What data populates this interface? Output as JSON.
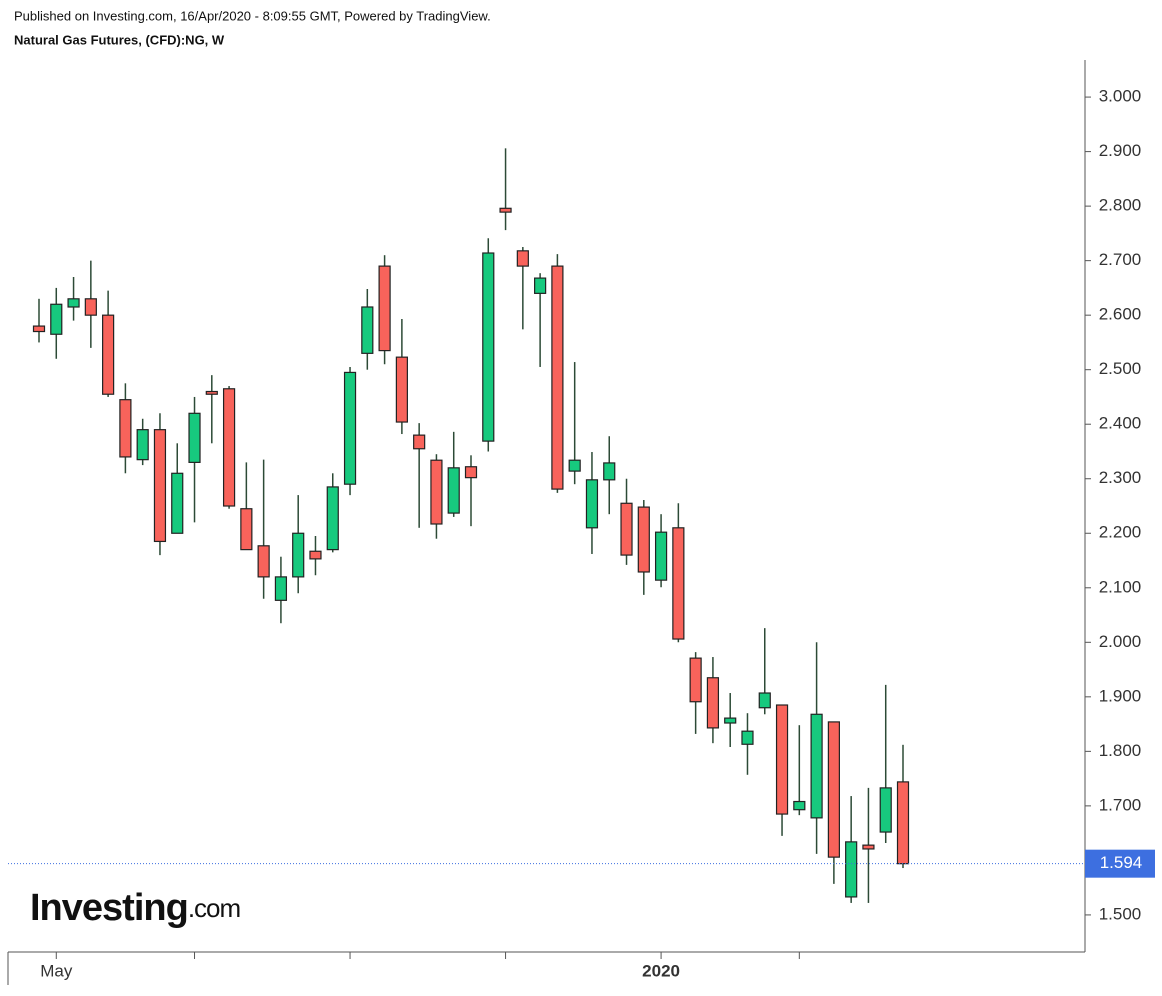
{
  "header": {
    "published": "Published on Investing.com, 16/Apr/2020 - 8:09:55 GMT, Powered by TradingView.",
    "instrument": "Natural Gas Futures, (CFD):NG, W"
  },
  "logo": {
    "brand": "Investing",
    "suffix": ".com"
  },
  "chart_data": {
    "type": "candlestick",
    "categories": [
      null,
      "May",
      null,
      null,
      null,
      null,
      null,
      null,
      null,
      null,
      null,
      null,
      null,
      null,
      null,
      null,
      null,
      null,
      null,
      null,
      null,
      null,
      null,
      null,
      null,
      null,
      null,
      null,
      null,
      null,
      null,
      null,
      null,
      null,
      null,
      null,
      "2020",
      null,
      null,
      null,
      null,
      null,
      null,
      null,
      null,
      null,
      null,
      null,
      null,
      null,
      null
    ],
    "open": [
      2.58,
      2.565,
      2.615,
      2.63,
      2.6,
      2.445,
      2.335,
      2.39,
      2.2,
      2.33,
      2.46,
      2.465,
      2.245,
      2.177,
      2.077,
      2.12,
      2.167,
      2.17,
      2.29,
      2.53,
      2.69,
      2.523,
      2.38,
      2.334,
      2.237,
      2.322,
      2.369,
      2.796,
      2.718,
      2.64,
      2.69,
      2.314,
      2.21,
      2.298,
      2.255,
      2.248,
      2.114,
      2.21,
      1.971,
      1.935,
      1.852,
      1.813,
      1.88,
      1.885,
      1.693,
      1.678,
      1.854,
      1.533,
      1.628,
      1.652,
      1.744
    ],
    "high": [
      2.63,
      2.65,
      2.67,
      2.7,
      2.645,
      2.475,
      2.41,
      2.42,
      2.365,
      2.45,
      2.49,
      2.47,
      2.33,
      2.335,
      2.157,
      2.27,
      2.195,
      2.31,
      2.505,
      2.648,
      2.71,
      2.593,
      2.402,
      2.345,
      2.386,
      2.343,
      2.741,
      2.906,
      2.725,
      2.677,
      2.712,
      2.514,
      2.349,
      2.378,
      2.3,
      2.261,
      2.235,
      2.255,
      1.982,
      1.973,
      1.907,
      1.87,
      2.026,
      1.885,
      1.848,
      2.0,
      1.854,
      1.718,
      1.733,
      1.922,
      1.812
    ],
    "low": [
      2.55,
      2.52,
      2.59,
      2.54,
      2.45,
      2.31,
      2.325,
      2.16,
      2.2,
      2.22,
      2.365,
      2.245,
      2.17,
      2.08,
      2.035,
      2.09,
      2.123,
      2.165,
      2.27,
      2.5,
      2.51,
      2.382,
      2.21,
      2.19,
      2.23,
      2.213,
      2.35,
      2.756,
      2.574,
      2.505,
      2.274,
      2.29,
      2.162,
      2.235,
      2.142,
      2.087,
      2.101,
      2.0,
      1.832,
      1.815,
      1.808,
      1.757,
      1.868,
      1.645,
      1.683,
      1.612,
      1.557,
      1.522,
      1.522,
      1.632,
      1.586
    ],
    "close": [
      2.57,
      2.62,
      2.63,
      2.6,
      2.455,
      2.34,
      2.39,
      2.185,
      2.31,
      2.42,
      2.455,
      2.25,
      2.17,
      2.12,
      2.12,
      2.2,
      2.153,
      2.285,
      2.495,
      2.615,
      2.535,
      2.404,
      2.355,
      2.217,
      2.32,
      2.302,
      2.714,
      2.789,
      2.69,
      2.668,
      2.281,
      2.334,
      2.298,
      2.329,
      2.16,
      2.129,
      2.202,
      2.006,
      1.891,
      1.843,
      1.861,
      1.837,
      1.907,
      1.685,
      1.708,
      1.868,
      1.606,
      1.634,
      1.621,
      1.733,
      1.594
    ],
    "up_color": "#17c97e",
    "down_color": "#f8635b",
    "wick_color": "#2c4a36",
    "last_price": 1.594,
    "last_price_color": "#3d6fe0",
    "ylim": [
      1.432,
      3.068
    ],
    "yticks": [
      {
        "value": 1.5,
        "label": "1.500"
      },
      {
        "value": 1.6,
        "label": "1.600"
      },
      {
        "value": 1.7,
        "label": "1.700"
      },
      {
        "value": 1.8,
        "label": "1.800"
      },
      {
        "value": 1.9,
        "label": "1.900"
      },
      {
        "value": 2.0,
        "label": "2.000"
      },
      {
        "value": 2.1,
        "label": "2.100"
      },
      {
        "value": 2.2,
        "label": "2.200"
      },
      {
        "value": 2.3,
        "label": "2.300"
      },
      {
        "value": 2.4,
        "label": "2.400"
      },
      {
        "value": 2.5,
        "label": "2.500"
      },
      {
        "value": 2.6,
        "label": "2.600"
      },
      {
        "value": 2.7,
        "label": "2.700"
      },
      {
        "value": 2.8,
        "label": "2.800"
      },
      {
        "value": 2.9,
        "label": "2.900"
      },
      {
        "value": 3.0,
        "label": "3.000"
      }
    ]
  }
}
